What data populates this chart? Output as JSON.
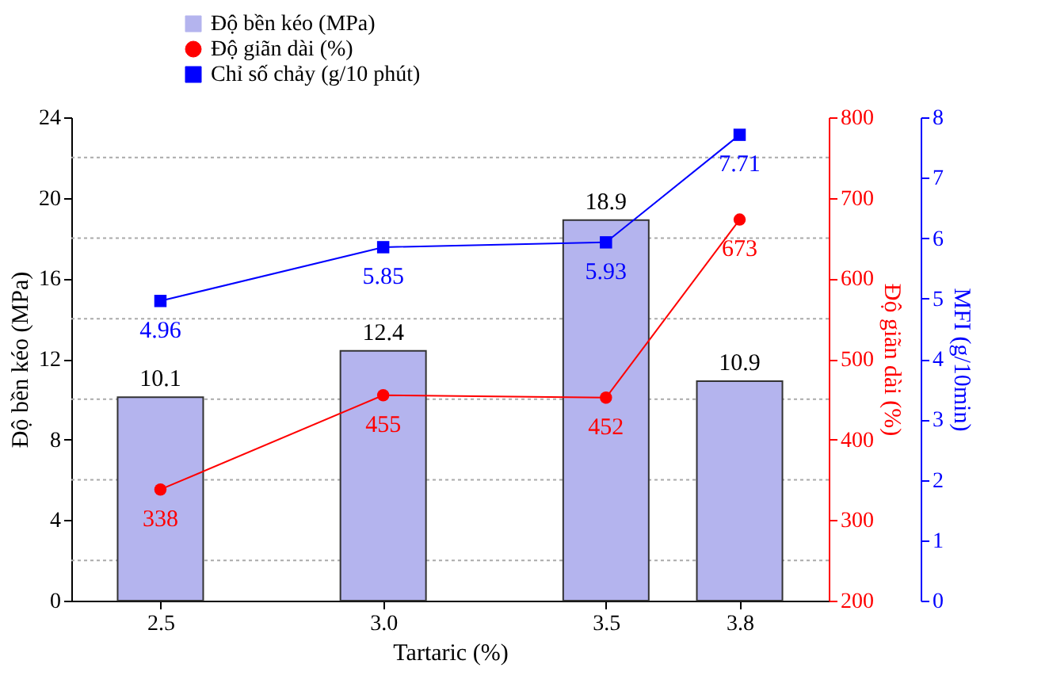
{
  "chart_data": {
    "type": "bar",
    "xlabel": "Tartaric (%)",
    "ylabel": "Độ bền kéo (MPa)",
    "y2label": "Độ giãn dài (%)",
    "y3label": "MFI (g/10min)",
    "x": [
      2.5,
      3.0,
      3.5,
      3.8
    ],
    "xlim": [
      2.3,
      4.0
    ],
    "xticks": [
      2.5,
      {
        "value": 3.0,
        "label": "3.0"
      },
      3.5,
      3.8
    ],
    "ylim": [
      0,
      24
    ],
    "yticks": [
      0,
      {
        "value": 2,
        "label": null
      },
      4,
      {
        "value": 6,
        "label": null
      },
      8,
      {
        "value": 10,
        "label": null
      },
      12,
      {
        "value": 14,
        "label": null
      },
      16,
      {
        "value": 18,
        "label": null
      },
      20,
      {
        "value": 22,
        "label": null
      },
      24
    ],
    "y2lim": [
      200,
      800
    ],
    "y2ticks": [
      200,
      300,
      400,
      500,
      600,
      700,
      800
    ],
    "y3lim": [
      0,
      8
    ],
    "y3ticks": [
      0,
      1,
      2,
      3,
      4,
      5,
      6,
      7,
      8
    ],
    "series": [
      {
        "name": "Độ bền kéo (MPa)",
        "color": "#b4b4ee",
        "values": [
          10.1,
          12.4,
          18.9,
          10.9
        ]
      },
      {
        "name": "Độ giãn dài (%)",
        "type": "line",
        "axis": "y2",
        "marker": "circle",
        "color": "#ff0000",
        "values": [
          338,
          455,
          452,
          673
        ]
      },
      {
        "name": "Chỉ số chảy (g/10 phút)",
        "type": "line",
        "axis": "y3",
        "marker": "square",
        "color": "#0000ff",
        "values": [
          4.96,
          5.85,
          5.93,
          7.71
        ]
      }
    ],
    "data_labels": true,
    "grid": "y",
    "legend": "top"
  }
}
